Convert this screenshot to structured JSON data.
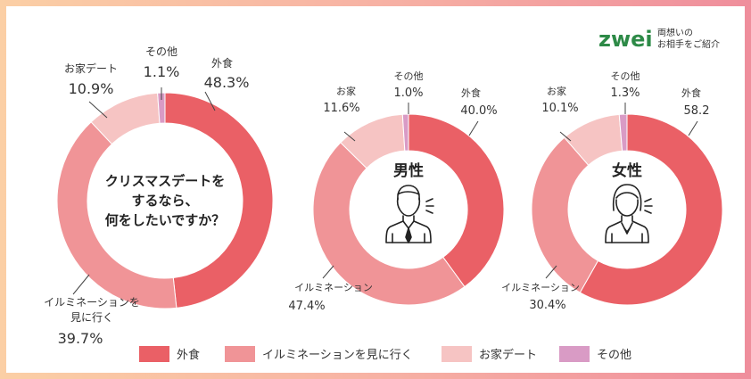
{
  "brand": {
    "logo_text": "zwei",
    "tagline_line1": "両想いの",
    "tagline_line2": "お相手をご紹介"
  },
  "colors": {
    "外食": "#ea6066",
    "イルミネーションを見に行く": "#f09497",
    "お家デート": "#f6c4c3",
    "その他": "#d99bc5",
    "logo_green": "#2d8a47"
  },
  "legend": [
    {
      "label": "外食",
      "key": "外食"
    },
    {
      "label": "イルミネーションを見に行く",
      "key": "イルミネーションを見に行く"
    },
    {
      "label": "お家デート",
      "key": "お家デート"
    },
    {
      "label": "その他",
      "key": "その他"
    }
  ],
  "chart_data": [
    {
      "type": "pie",
      "title": "",
      "center_text": [
        "クリスマスデートを",
        "するなら、",
        "何をしたいですか？"
      ],
      "slices": [
        {
          "key": "外食",
          "label": "外食",
          "value": 48.3,
          "value_text": "48.3%"
        },
        {
          "key": "イルミネーションを見に行く",
          "label_lines": [
            "イルミネーションを",
            "見に行く"
          ],
          "value": 39.7,
          "value_text": "39.7%"
        },
        {
          "key": "お家デート",
          "label": "お家デート",
          "value": 10.9,
          "value_text": "10.9%"
        },
        {
          "key": "その他",
          "label": "その他",
          "value": 1.1,
          "value_text": "1.1%"
        }
      ]
    },
    {
      "type": "pie",
      "title": "男性",
      "icon": "man-icon",
      "slices": [
        {
          "key": "外食",
          "label": "外食",
          "value": 40.0,
          "value_text": "40.0%"
        },
        {
          "key": "イルミネーションを見に行く",
          "label": "イルミネーション",
          "value": 47.4,
          "value_text": "47.4%"
        },
        {
          "key": "お家デート",
          "label": "お家",
          "value": 11.6,
          "value_text": "11.6%"
        },
        {
          "key": "その他",
          "label": "その他",
          "value": 1.0,
          "value_text": "1.0%"
        }
      ]
    },
    {
      "type": "pie",
      "title": "女性",
      "icon": "woman-icon",
      "slices": [
        {
          "key": "外食",
          "label": "外食",
          "value": 58.2,
          "value_text": "58.2"
        },
        {
          "key": "イルミネーションを見に行く",
          "label": "イルミネーション",
          "value": 30.4,
          "value_text": "30.4%"
        },
        {
          "key": "お家デート",
          "label": "お家",
          "value": 10.1,
          "value_text": "10.1%"
        },
        {
          "key": "その他",
          "label": "その他",
          "value": 1.3,
          "value_text": "1.3%"
        }
      ]
    }
  ]
}
